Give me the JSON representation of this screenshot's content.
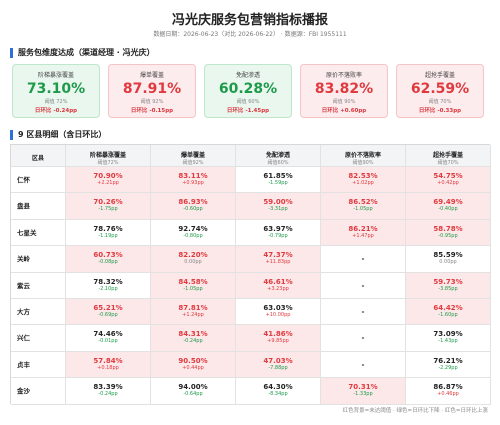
{
  "header": {
    "title": "冯光庆服务包营销指标播报",
    "subtitle": "数据日期：2026-06-23（对比 2026-06-22） · 数据源：FBI 1955111"
  },
  "summary": {
    "title": "服务包维度达成（渠道经理 · 冯光庆）",
    "cards": [
      {
        "name": "阶梯暴涨覆盖",
        "value": "73.10%",
        "threshold": "阈值 72%",
        "delta": "日环比 -0.24pp",
        "miss": false
      },
      {
        "name": "爆单覆盖",
        "value": "87.91%",
        "threshold": "阈值 92%",
        "delta": "日环比 -0.15pp",
        "miss": true
      },
      {
        "name": "免配渗透",
        "value": "60.28%",
        "threshold": "阈值 60%",
        "delta": "日环比 -1.45pp",
        "miss": false
      },
      {
        "name": "原价不落败率",
        "value": "83.82%",
        "threshold": "阈值 90%",
        "delta": "日环比 +0.60pp",
        "miss": true
      },
      {
        "name": "超抢手覆盖",
        "value": "62.59%",
        "threshold": "阈值 70%",
        "delta": "日环比 -0.33pp",
        "miss": true
      }
    ]
  },
  "detail": {
    "title": "9 区县明细（含日环比）",
    "columns": [
      {
        "name": "区县"
      },
      {
        "name": "阶梯暴涨覆盖",
        "threshold": "阈值72%"
      },
      {
        "name": "爆单覆盖",
        "threshold": "阈值92%"
      },
      {
        "name": "免配渗透",
        "threshold": "阈值60%"
      },
      {
        "name": "原价不落败率",
        "threshold": "阈值90%"
      },
      {
        "name": "超抢手覆盖",
        "threshold": "阈值70%"
      }
    ],
    "rows": [
      {
        "name": "仁怀",
        "cells": [
          {
            "value": "70.90%",
            "delta": "+2.21pp",
            "miss": true
          },
          {
            "value": "83.11%",
            "delta": "+0.93pp",
            "miss": true
          },
          {
            "value": "61.85%",
            "delta": "-1.59pp",
            "miss": false
          },
          {
            "value": "82.53%",
            "delta": "+1.02pp",
            "miss": true
          },
          {
            "value": "54.75%",
            "delta": "+0.42pp",
            "miss": true
          }
        ]
      },
      {
        "name": "盘县",
        "cells": [
          {
            "value": "70.26%",
            "delta": "-1.75pp",
            "miss": true
          },
          {
            "value": "86.93%",
            "delta": "-0.60pp",
            "miss": true
          },
          {
            "value": "59.00%",
            "delta": "-3.31pp",
            "miss": true
          },
          {
            "value": "86.52%",
            "delta": "-1.05pp",
            "miss": true
          },
          {
            "value": "69.49%",
            "delta": "-0.40pp",
            "miss": true
          }
        ]
      },
      {
        "name": "七星关",
        "cells": [
          {
            "value": "78.76%",
            "delta": "-1.19pp",
            "miss": false
          },
          {
            "value": "92.74%",
            "delta": "-0.80pp",
            "miss": false
          },
          {
            "value": "63.97%",
            "delta": "-0.79pp",
            "miss": false
          },
          {
            "value": "86.21%",
            "delta": "+1.47pp",
            "miss": true
          },
          {
            "value": "58.78%",
            "delta": "-0.95pp",
            "miss": true
          }
        ]
      },
      {
        "name": "关岭",
        "cells": [
          {
            "value": "60.73%",
            "delta": "-0.08pp",
            "miss": true
          },
          {
            "value": "82.20%",
            "delta": "0.00pp",
            "miss": true
          },
          {
            "value": "47.37%",
            "delta": "+11.83pp",
            "miss": true
          },
          {
            "value": "-"
          },
          {
            "value": "85.59%",
            "delta": "0.00pp",
            "miss": false
          }
        ]
      },
      {
        "name": "紫云",
        "cells": [
          {
            "value": "78.32%",
            "delta": "-2.10pp",
            "miss": false
          },
          {
            "value": "84.58%",
            "delta": "-1.05pp",
            "miss": true
          },
          {
            "value": "46.61%",
            "delta": "+3.23pp",
            "miss": true
          },
          {
            "value": "-"
          },
          {
            "value": "59.73%",
            "delta": "-3.85pp",
            "miss": true
          }
        ]
      },
      {
        "name": "大方",
        "cells": [
          {
            "value": "65.21%",
            "delta": "-0.69pp",
            "miss": true
          },
          {
            "value": "87.81%",
            "delta": "+1.24pp",
            "miss": true
          },
          {
            "value": "63.03%",
            "delta": "+10.00pp",
            "miss": false
          },
          {
            "value": "-"
          },
          {
            "value": "64.42%",
            "delta": "-1.60pp",
            "miss": true
          }
        ]
      },
      {
        "name": "兴仁",
        "cells": [
          {
            "value": "74.46%",
            "delta": "-0.01pp",
            "miss": false
          },
          {
            "value": "84.31%",
            "delta": "-0.24pp",
            "miss": true
          },
          {
            "value": "41.86%",
            "delta": "+9.85pp",
            "miss": true
          },
          {
            "value": "-"
          },
          {
            "value": "73.09%",
            "delta": "-1.43pp",
            "miss": false
          }
        ]
      },
      {
        "name": "贞丰",
        "cells": [
          {
            "value": "57.84%",
            "delta": "+0.18pp",
            "miss": true
          },
          {
            "value": "90.50%",
            "delta": "+0.44pp",
            "miss": true
          },
          {
            "value": "47.03%",
            "delta": "-7.88pp",
            "miss": true
          },
          {
            "value": "-"
          },
          {
            "value": "76.21%",
            "delta": "-2.29pp",
            "miss": false
          }
        ]
      },
      {
        "name": "金沙",
        "cells": [
          {
            "value": "83.39%",
            "delta": "-0.24pp",
            "miss": false
          },
          {
            "value": "94.00%",
            "delta": "-0.64pp",
            "miss": false
          },
          {
            "value": "64.30%",
            "delta": "-8.34pp",
            "miss": false
          },
          {
            "value": "70.31%",
            "delta": "-1.33pp",
            "miss": true
          },
          {
            "value": "86.87%",
            "delta": "+0.46pp",
            "miss": false
          }
        ]
      }
    ]
  },
  "footer": "红色背景=未达阈值 · 绿色=日环比下降 · 红色=日环比上涨"
}
